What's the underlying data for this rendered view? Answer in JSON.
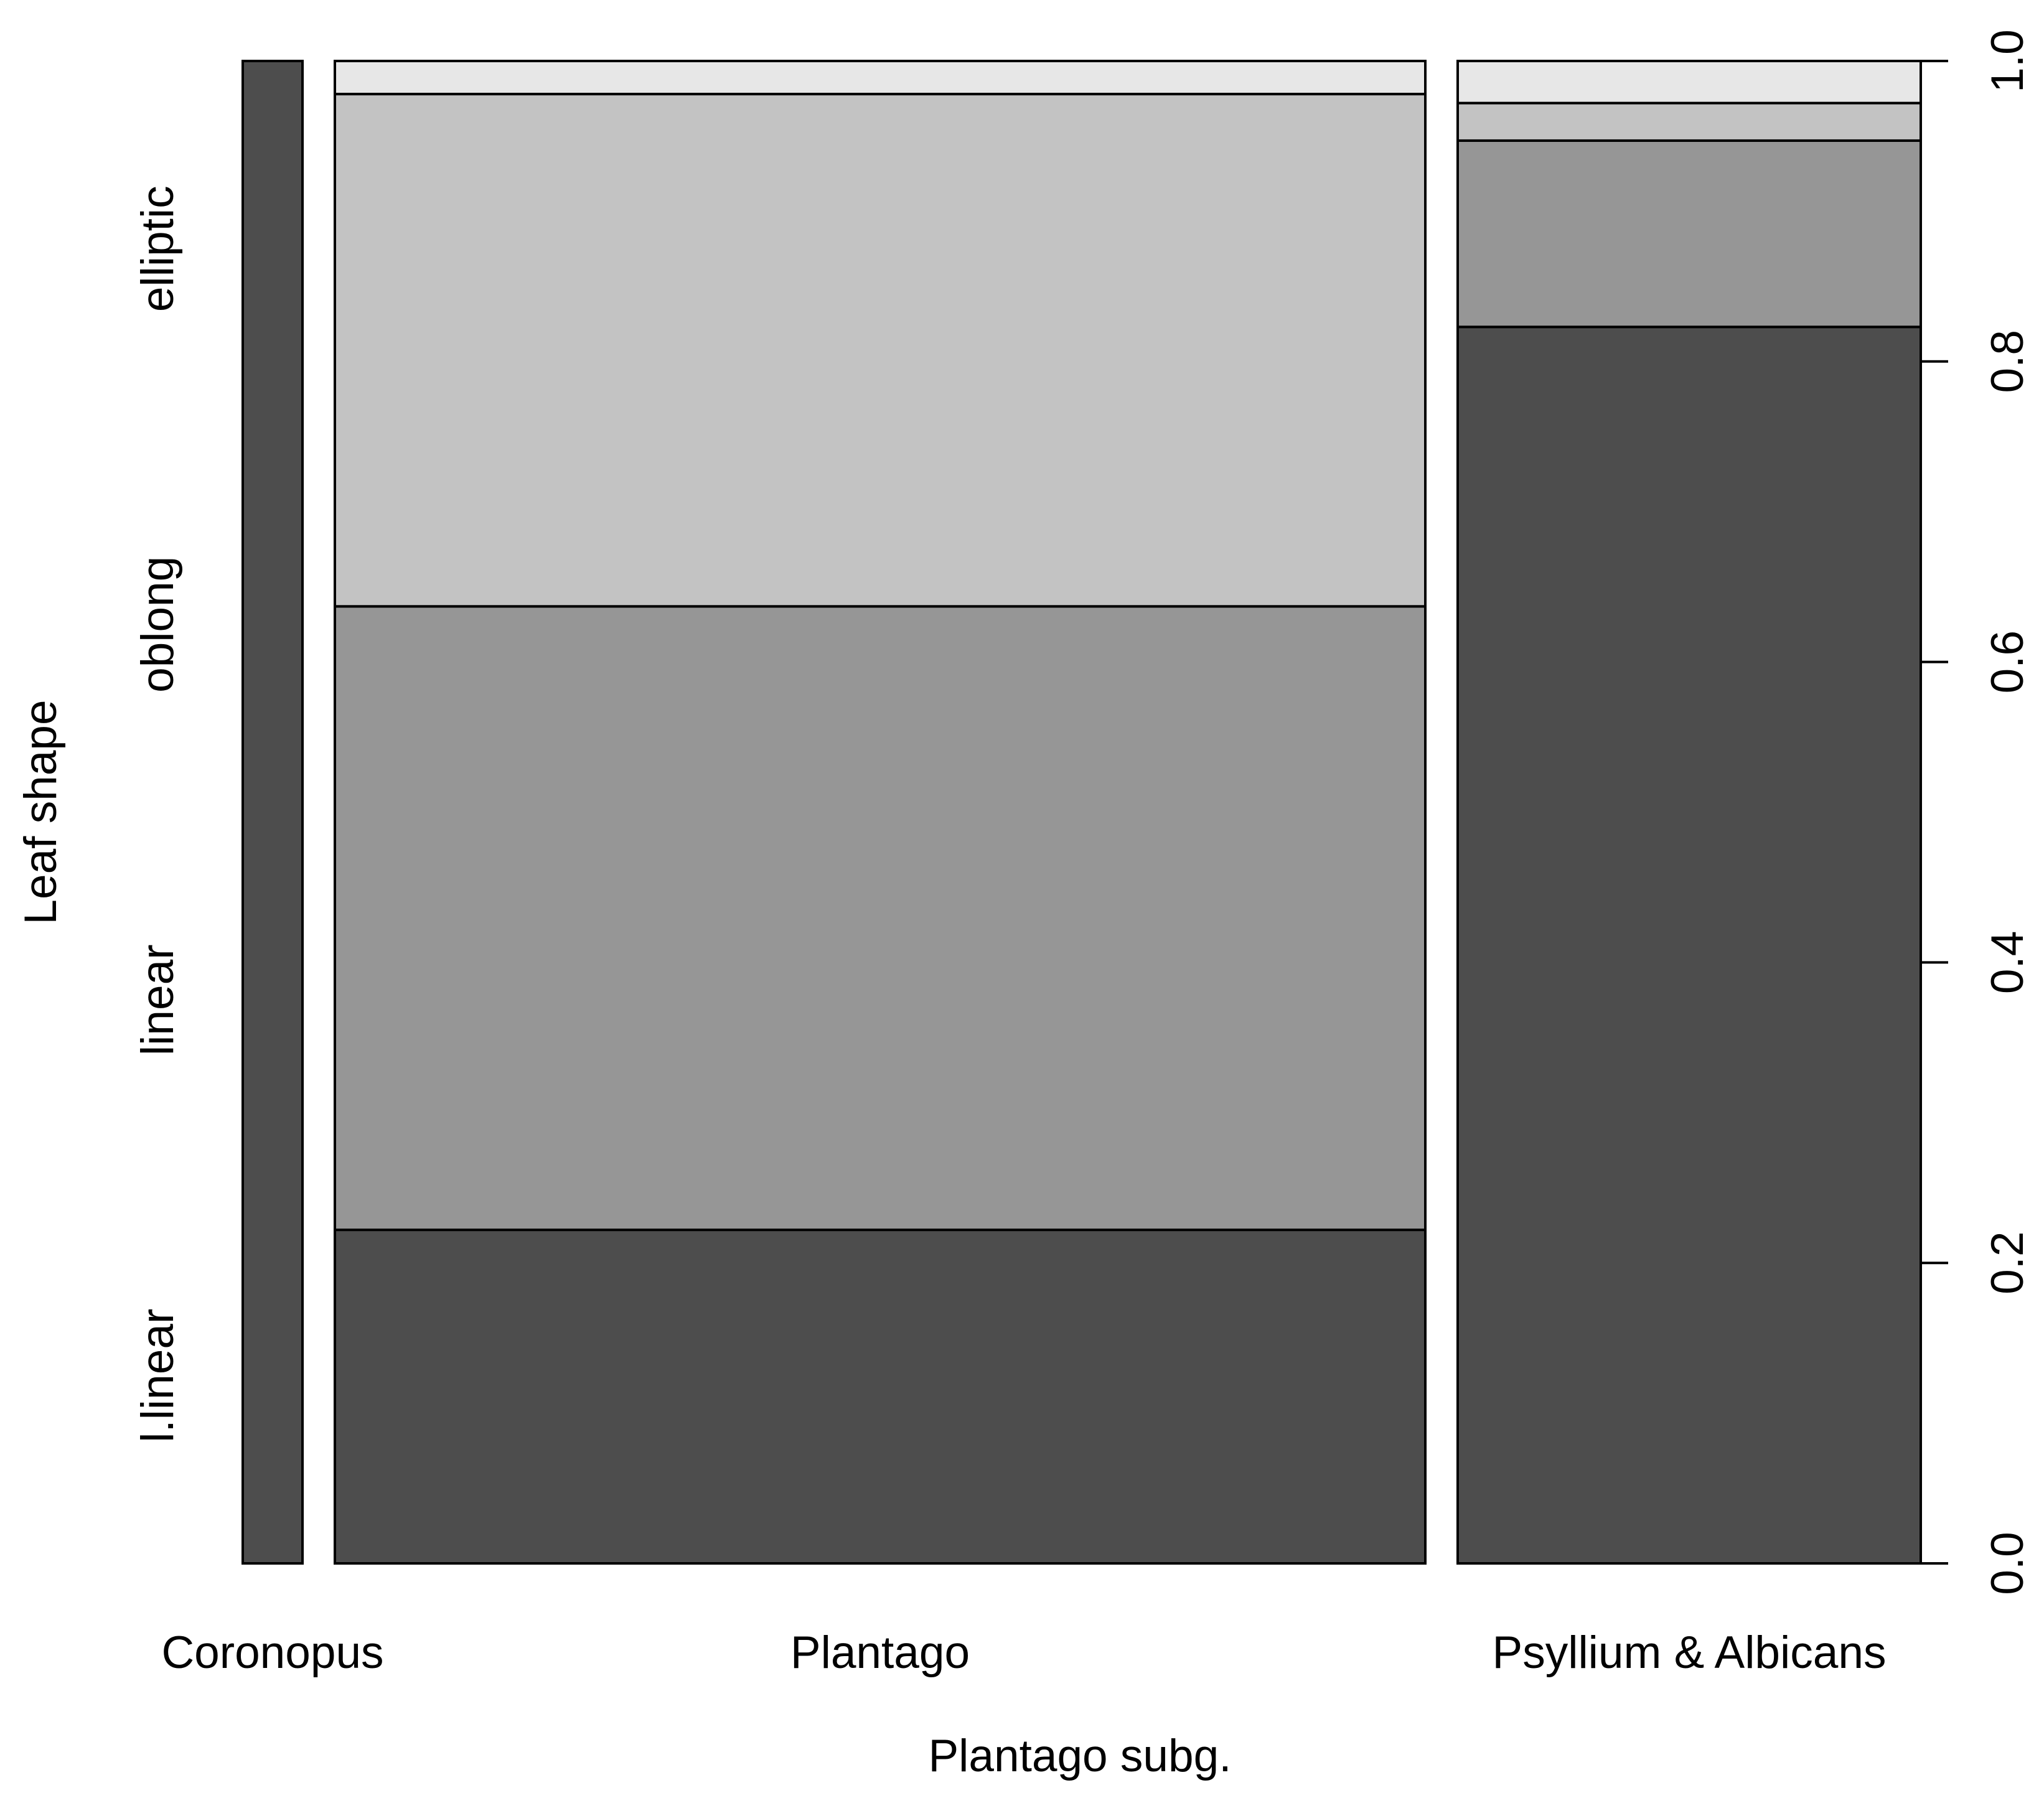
{
  "chart_data": {
    "type": "mosaic",
    "title": "",
    "xlabel": "Plantago subg.",
    "ylabel": "Leaf shape",
    "ylim": [
      0,
      1
    ],
    "y_ticks": [
      "0.0",
      "0.2",
      "0.4",
      "0.6",
      "0.8",
      "1.0"
    ],
    "y_tick_values": [
      0,
      0.2,
      0.4,
      0.6,
      0.8,
      1.0
    ],
    "y_axis_side": "right",
    "categories": [
      "Coronopus",
      "Plantago",
      "Psyllium & Albicans"
    ],
    "column_widths": [
      0.04,
      0.73,
      0.31
    ],
    "levels": [
      "l.linear",
      "linear",
      "oblong",
      "elliptic"
    ],
    "level_colors": [
      "#4d4d4d",
      "#969696",
      "#c3c3c3",
      "#e7e7e7"
    ],
    "series": [
      {
        "name": "l.linear",
        "values": [
          1.0,
          0.222,
          0.823
        ]
      },
      {
        "name": "linear",
        "values": [
          0.0,
          0.415,
          0.124
        ]
      },
      {
        "name": "oblong",
        "values": [
          0.0,
          0.341,
          0.025
        ]
      },
      {
        "name": "elliptic",
        "values": [
          0.0,
          0.022,
          0.028
        ]
      }
    ]
  }
}
